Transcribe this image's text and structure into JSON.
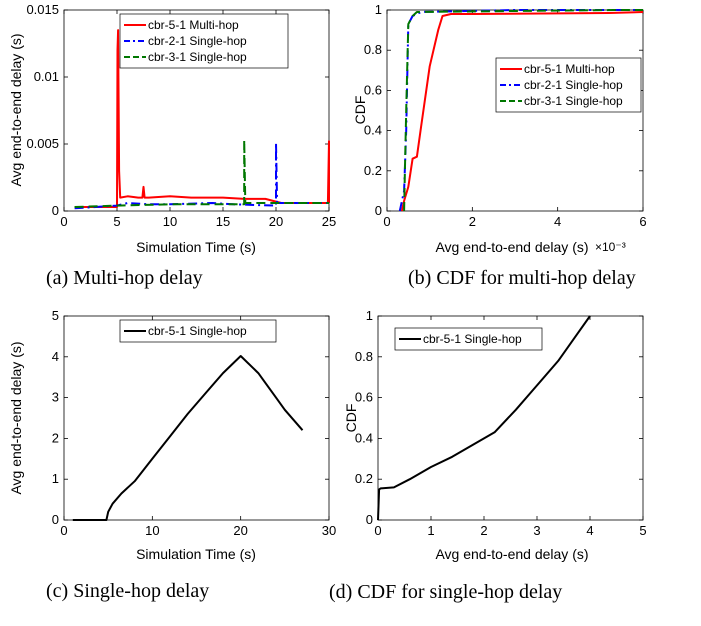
{
  "figure": {
    "captions": [
      "(a) Multi-hop delay",
      "(b) CDF for multi-hop delay",
      "(c) Single-hop delay",
      "(d) CDF for single-hop delay"
    ]
  },
  "chart_data": [
    {
      "id": "a",
      "type": "line",
      "title": "",
      "xlabel": "Simulation Time (s)",
      "ylabel": "Avg end-to-end delay (s)",
      "xlim": [
        0,
        25
      ],
      "ylim": [
        0,
        0.015
      ],
      "xticks": [
        0,
        5,
        10,
        15,
        20,
        25
      ],
      "xtick_labels": [
        "0",
        "5",
        "10",
        "15",
        "20",
        "25"
      ],
      "yticks": [
        0,
        0.005,
        0.01,
        0.015
      ],
      "ytick_labels": [
        "0",
        "0.005",
        "0.01",
        "0.015"
      ],
      "grid": false,
      "legend": "top-center",
      "series": [
        {
          "name": "cbr-5-1 Multi-hop",
          "color": "#ff0000",
          "dash": "solid",
          "x": [
            1,
            5,
            5.05,
            5.1,
            5.2,
            5.3,
            6,
            7,
            7.4,
            7.5,
            7.6,
            8,
            10,
            12,
            15,
            17,
            19,
            20,
            20.5,
            24.9,
            25,
            25
          ],
          "y": [
            0.0003,
            0.0003,
            0.012,
            0.0135,
            0.003,
            0.001,
            0.0011,
            0.001,
            0.001,
            0.0018,
            0.001,
            0.001,
            0.0011,
            0.001,
            0.001,
            0.0009,
            0.0009,
            0.0007,
            0.0006,
            0.0006,
            0.0052,
            0.0006
          ]
        },
        {
          "name": "cbr-2-1 Single-hop",
          "color": "#0000ff",
          "dash": "dashdot",
          "x": [
            1,
            3,
            5,
            6,
            8,
            10,
            14,
            16,
            19.9,
            20,
            20,
            20.1,
            25
          ],
          "y": [
            0.0002,
            0.0003,
            0.0004,
            0.0006,
            0.0005,
            0.0005,
            0.0006,
            0.0005,
            0.0004,
            0.0004,
            0.0051,
            0.0006,
            0.0006
          ]
        },
        {
          "name": "cbr-3-1 Single-hop",
          "color": "#007700",
          "dash": "dashed",
          "x": [
            1,
            5,
            10,
            15,
            16.9,
            17,
            17,
            17.1,
            20,
            25
          ],
          "y": [
            0.0003,
            0.0004,
            0.0005,
            0.0005,
            0.0005,
            0.0005,
            0.0053,
            0.0006,
            0.0006,
            0.0006
          ]
        }
      ]
    },
    {
      "id": "b",
      "type": "line",
      "title": "",
      "xlabel": "Avg end-to-end delay (s)",
      "x_multiplier": "×10⁻³",
      "ylabel": "CDF",
      "xlim": [
        0,
        0.006
      ],
      "ylim": [
        0,
        1
      ],
      "xticks": [
        0,
        0.002,
        0.004,
        0.006
      ],
      "xtick_labels": [
        "0",
        "2",
        "4",
        "6"
      ],
      "yticks": [
        0,
        0.2,
        0.4,
        0.6,
        0.8,
        1
      ],
      "ytick_labels": [
        "0",
        "0.2",
        "0.4",
        "0.6",
        "0.8",
        "1"
      ],
      "grid": false,
      "legend": "center-right",
      "series": [
        {
          "name": "cbr-5-1 Multi-hop",
          "color": "#ff0000",
          "dash": "solid",
          "x": [
            0.00035,
            0.0004,
            0.0005,
            0.0006,
            0.0007,
            0.0008,
            0.001,
            0.0012,
            0.0013,
            0.0015,
            0.002,
            0.0052,
            0.006
          ],
          "y": [
            0,
            0.05,
            0.12,
            0.26,
            0.27,
            0.42,
            0.72,
            0.9,
            0.97,
            0.98,
            0.98,
            0.985,
            0.99
          ]
        },
        {
          "name": "cbr-2-1 Single-hop",
          "color": "#0000ff",
          "dash": "dashdot",
          "x": [
            0.0003,
            0.0004,
            0.00045,
            0.0005,
            0.0006,
            0.0008,
            0.003,
            0.006
          ],
          "y": [
            0,
            0.1,
            0.4,
            0.93,
            0.97,
            0.99,
            1,
            1
          ]
        },
        {
          "name": "cbr-3-1 Single-hop",
          "color": "#007700",
          "dash": "dashed",
          "x": [
            0.0004,
            0.00042,
            0.00045,
            0.0005,
            0.0006,
            0.0007,
            0.0053,
            0.006
          ],
          "y": [
            0,
            0.2,
            0.5,
            0.93,
            0.97,
            0.99,
            1,
            1
          ]
        }
      ]
    },
    {
      "id": "c",
      "type": "line",
      "title": "",
      "xlabel": "Simulation Time (s)",
      "ylabel": "Avg end-to-end delay (s)",
      "xlim": [
        0,
        30
      ],
      "ylim": [
        0,
        5
      ],
      "xticks": [
        0,
        10,
        20,
        30
      ],
      "xtick_labels": [
        "0",
        "10",
        "20",
        "30"
      ],
      "yticks": [
        0,
        1,
        2,
        3,
        4,
        5
      ],
      "ytick_labels": [
        "0",
        "1",
        "2",
        "3",
        "4",
        "5"
      ],
      "grid": false,
      "legend": "top-left",
      "series": [
        {
          "name": "cbr-5-1 Single-hop",
          "color": "#000000",
          "dash": "solid",
          "x": [
            1,
            4.8,
            5,
            5.5,
            6.5,
            8,
            10,
            12,
            14,
            16,
            18,
            20,
            22,
            24,
            25,
            27
          ],
          "y": [
            0,
            0,
            0.2,
            0.4,
            0.65,
            0.95,
            1.5,
            2.05,
            2.6,
            3.1,
            3.6,
            4.02,
            3.6,
            3.0,
            2.7,
            2.2
          ]
        }
      ]
    },
    {
      "id": "d",
      "type": "line",
      "title": "",
      "xlabel": "Avg end-to-end delay (s)",
      "ylabel": "CDF",
      "xlim": [
        0,
        5
      ],
      "ylim": [
        0,
        1
      ],
      "xticks": [
        0,
        1,
        2,
        3,
        4,
        5
      ],
      "xtick_labels": [
        "0",
        "1",
        "2",
        "3",
        "4",
        "5"
      ],
      "yticks": [
        0,
        0.2,
        0.4,
        0.6,
        0.8,
        1
      ],
      "ytick_labels": [
        "0",
        "0.2",
        "0.4",
        "0.6",
        "0.8",
        "1"
      ],
      "grid": false,
      "legend": "top-left",
      "series": [
        {
          "name": "cbr-5-1 Single-hop",
          "color": "#000000",
          "dash": "solid",
          "x": [
            0,
            0.02,
            0.05,
            0.3,
            0.6,
            1.0,
            1.4,
            1.8,
            2.2,
            2.6,
            3.0,
            3.4,
            3.7,
            4.0
          ],
          "y": [
            0,
            0.15,
            0.155,
            0.16,
            0.2,
            0.26,
            0.31,
            0.37,
            0.43,
            0.54,
            0.66,
            0.78,
            0.89,
            1.0
          ]
        }
      ]
    }
  ]
}
